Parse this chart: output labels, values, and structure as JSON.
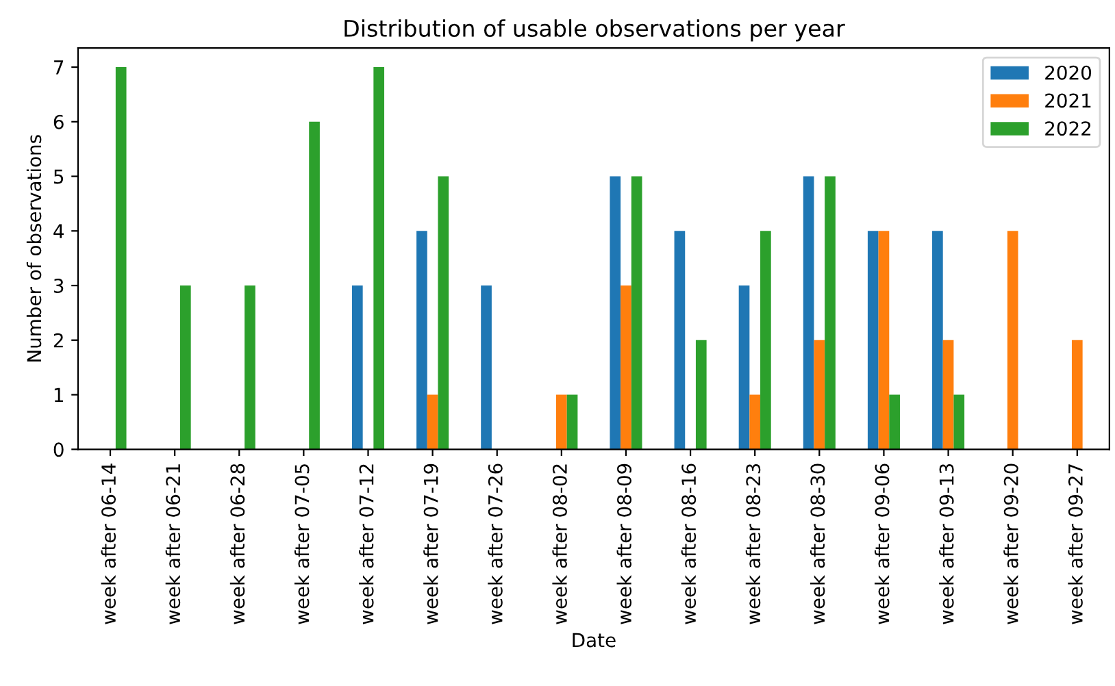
{
  "chart_data": {
    "type": "bar",
    "title": "Distribution of usable observations per year",
    "xlabel": "Date",
    "ylabel": "Number of observations",
    "categories": [
      "week after 06-14",
      "week after 06-21",
      "week after 06-28",
      "week after 07-05",
      "week after 07-12",
      "week after 07-19",
      "week after 07-26",
      "week after 08-02",
      "week after 08-09",
      "week after 08-16",
      "week after 08-23",
      "week after 08-30",
      "week after 09-06",
      "week after 09-13",
      "week after 09-20",
      "week after 09-27"
    ],
    "series": [
      {
        "name": "2020",
        "color": "#1f77b4",
        "values": [
          0,
          0,
          0,
          0,
          3,
          4,
          3,
          0,
          5,
          4,
          3,
          5,
          4,
          4,
          0,
          0
        ]
      },
      {
        "name": "2021",
        "color": "#ff7f0e",
        "values": [
          0,
          0,
          0,
          0,
          0,
          1,
          0,
          1,
          3,
          0,
          1,
          2,
          4,
          2,
          4,
          2
        ]
      },
      {
        "name": "2022",
        "color": "#2ca02c",
        "values": [
          7,
          3,
          3,
          6,
          7,
          5,
          0,
          1,
          5,
          2,
          4,
          5,
          1,
          1,
          0,
          0
        ]
      }
    ],
    "ylim": [
      0,
      7.35
    ],
    "yticks": [
      0,
      1,
      2,
      3,
      4,
      5,
      6,
      7
    ],
    "grid": false,
    "legend": "top right"
  }
}
